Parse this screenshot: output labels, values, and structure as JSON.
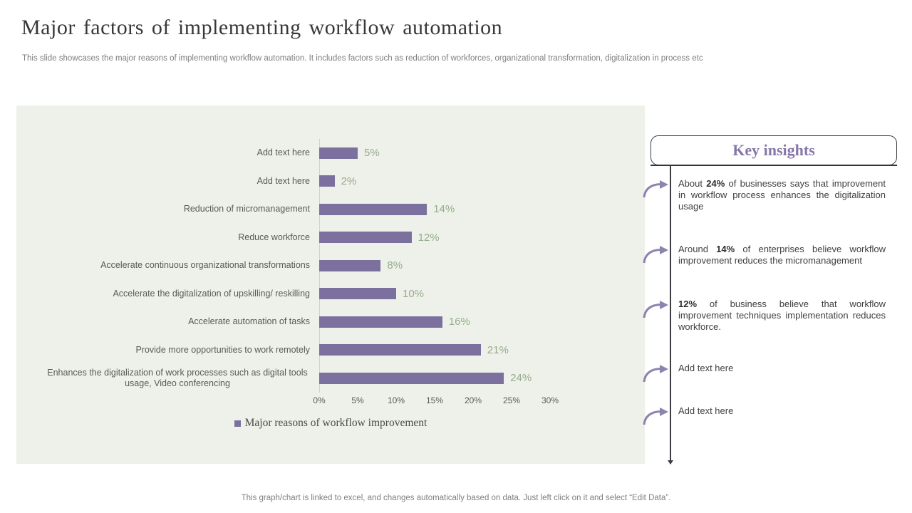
{
  "slide": {
    "title": "Major factors of implementing workflow automation",
    "subtitle": "This slide showcases the major reasons of implementing workflow automation. It includes factors such as reduction of workforces, organizational transformation, digitalization in process etc",
    "footer": "This graph/chart is linked to excel, and changes automatically based on data. Just left click on it and select “Edit Data”."
  },
  "chart_data": {
    "type": "bar",
    "orientation": "horizontal",
    "title": "",
    "xlabel": "",
    "ylabel": "",
    "categories": [
      "Add text here",
      "Add text here",
      "Reduction of micromanagement",
      "Reduce workforce",
      "Accelerate continuous organizational transformations",
      "Accelerate the digitalization of upskilling/ reskilling",
      "Accelerate automation of tasks",
      "Provide more opportunities to work remotely",
      "Enhances the digitalization of work processes such as digital tools usage, Video conferencing"
    ],
    "values": [
      5,
      2,
      14,
      12,
      8,
      10,
      16,
      21,
      24
    ],
    "value_labels": [
      "5%",
      "2%",
      "14%",
      "12%",
      "8%",
      "10%",
      "16%",
      "21%",
      "24%"
    ],
    "x_ticks": [
      "0%",
      "5%",
      "10%",
      "15%",
      "20%",
      "25%",
      "30%"
    ],
    "xlim": [
      0,
      30
    ],
    "grid": false,
    "legend": "Major reasons of workflow improvement",
    "legend_position": "bottom",
    "colors": {
      "bar": "#7c719e",
      "value_label": "#95ac8c",
      "plot_background": "#eef1e9",
      "axis_text": "#595955"
    }
  },
  "insights": {
    "title": "Key insights",
    "accent_color": "#8577a8",
    "arrow_icon": "curved-arrow-icon",
    "items": [
      {
        "pre": "About ",
        "bold": "24%",
        "post": " of businesses says that improvement in workflow process enhances the digitalization usage"
      },
      {
        "pre": "Around ",
        "bold": "14%",
        "post": " of enterprises believe workflow improvement reduces the micromanagement"
      },
      {
        "pre": "",
        "bold": "12%",
        "post": " of business believe that workflow improvement techniques implementation reduces workforce."
      },
      {
        "pre": "Add text here",
        "bold": "",
        "post": ""
      },
      {
        "pre": "Add text here",
        "bold": "",
        "post": ""
      }
    ]
  }
}
